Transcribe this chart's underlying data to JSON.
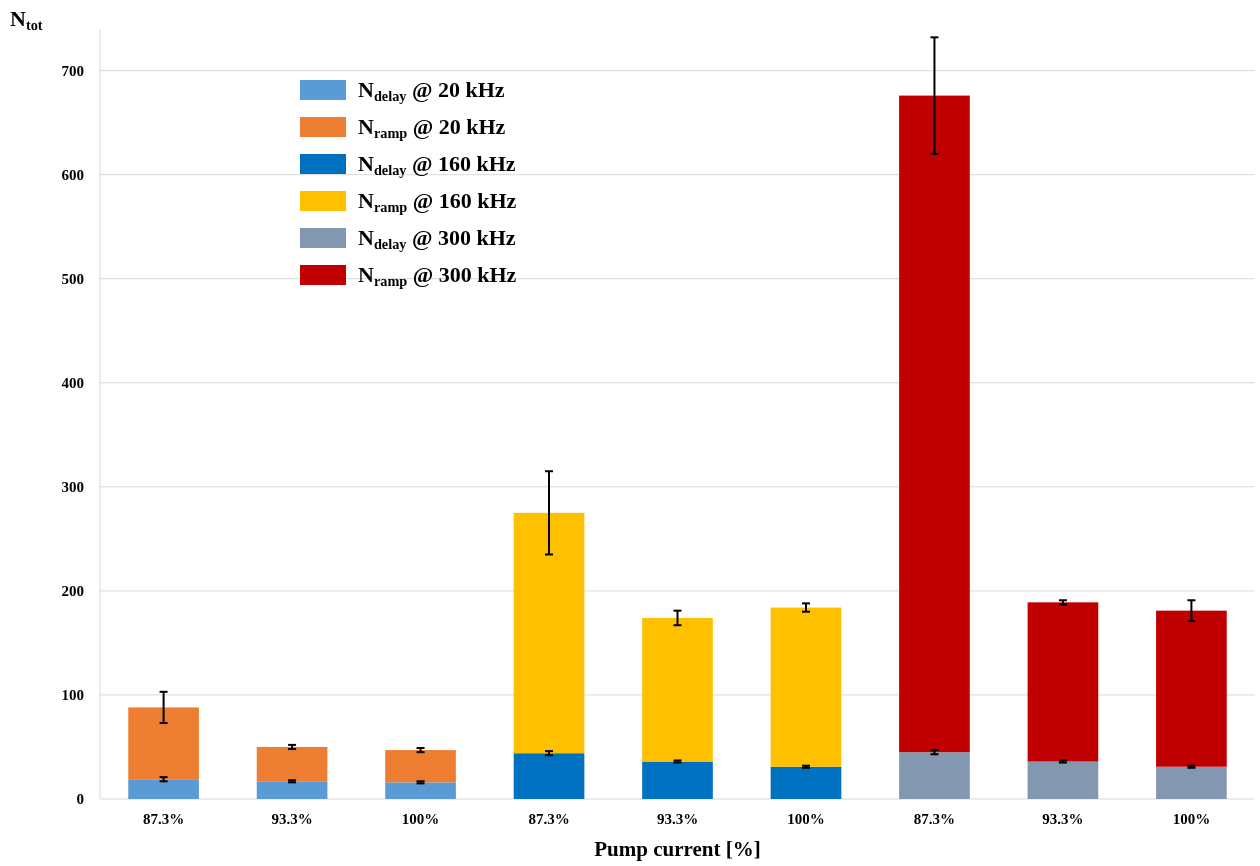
{
  "chart_data": {
    "type": "bar",
    "stacked": true,
    "ylabel": "N$_{tot}$",
    "xlabel": "Pump current [%]",
    "categories": [
      "87.3%",
      "93.3%",
      "100%",
      "87.3%",
      "93.3%",
      "100%",
      "87.3%",
      "93.3%",
      "100%"
    ],
    "series": [
      {
        "name": "N$_{delay}$ @ 20 kHz",
        "color": "#5b9bd5",
        "values": [
          19,
          17,
          16,
          null,
          null,
          null,
          null,
          null,
          null
        ],
        "errors": [
          2,
          1,
          1,
          null,
          null,
          null,
          null,
          null,
          null
        ]
      },
      {
        "name": "N$_{ramp}$ @ 20 kHz",
        "color": "#ed7d31",
        "values": [
          69,
          33,
          31,
          null,
          null,
          null,
          null,
          null,
          null
        ],
        "errors": [
          15,
          2,
          2,
          null,
          null,
          null,
          null,
          null,
          null
        ]
      },
      {
        "name": "N$_{delay}$ @ 160 kHz",
        "color": "#0070c0",
        "values": [
          null,
          null,
          null,
          44,
          36,
          31,
          null,
          null,
          null
        ],
        "errors": [
          null,
          null,
          null,
          2,
          1,
          1,
          null,
          null,
          null
        ]
      },
      {
        "name": "N$_{ramp}$ @ 160 kHz",
        "color": "#ffc000",
        "values": [
          null,
          null,
          null,
          231,
          138,
          153,
          null,
          null,
          null
        ],
        "errors": [
          null,
          null,
          null,
          40,
          7,
          4,
          null,
          null,
          null
        ]
      },
      {
        "name": "N$_{delay}$ @ 300 kHz",
        "color": "#8497b0",
        "values": [
          null,
          null,
          null,
          null,
          null,
          null,
          45,
          36,
          31
        ],
        "errors": [
          null,
          null,
          null,
          null,
          null,
          null,
          2,
          1,
          1
        ]
      },
      {
        "name": "N$_{ramp}$ @ 300 kHz",
        "color": "#c00000",
        "values": [
          null,
          null,
          null,
          null,
          null,
          null,
          631,
          153,
          150
        ],
        "errors": [
          null,
          null,
          null,
          null,
          null,
          null,
          56,
          2,
          10
        ]
      }
    ],
    "ylim": [
      0,
      740
    ],
    "yticks": [
      0,
      100,
      200,
      300,
      400,
      500,
      600,
      700
    ],
    "grid": "y",
    "legend": "top left"
  }
}
